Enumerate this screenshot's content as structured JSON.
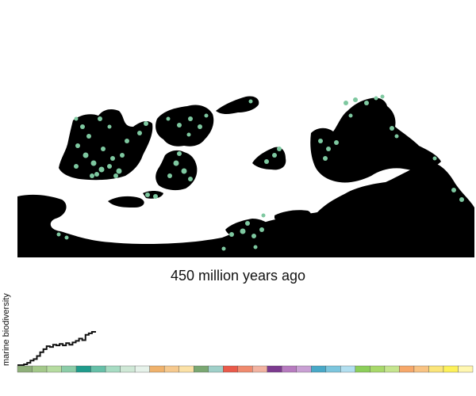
{
  "map": {
    "caption": "450 million years ago",
    "land_color": "#000000",
    "fossil_color": "#7ec8a0",
    "ocean_color": "#ffffff"
  },
  "diversity_chart": {
    "ylabel": "marine biodiversity",
    "line_color": "#111111",
    "series": [
      0,
      0,
      1,
      3,
      6,
      8,
      12,
      17,
      21,
      25,
      24,
      27,
      26,
      28,
      26,
      29,
      27,
      30,
      32,
      35,
      33,
      40,
      42,
      44,
      45
    ],
    "time_bands": [
      {
        "color": "#8fb07a"
      },
      {
        "color": "#a4c98a"
      },
      {
        "color": "#b6dca0"
      },
      {
        "color": "#8ccda8"
      },
      {
        "color": "#1f9c8c"
      },
      {
        "color": "#66c0a8"
      },
      {
        "color": "#a7dcc3"
      },
      {
        "color": "#cfe8d6"
      },
      {
        "color": "#e6f2ea"
      },
      {
        "color": "#f0b26c"
      },
      {
        "color": "#f6c98e"
      },
      {
        "color": "#fbe1a6"
      },
      {
        "color": "#7aa872"
      },
      {
        "color": "#9fd0c9"
      },
      {
        "color": "#ea5a4a"
      },
      {
        "color": "#f08a6e"
      },
      {
        "color": "#f2b3a1"
      },
      {
        "color": "#7c3a8f"
      },
      {
        "color": "#b77bc0"
      },
      {
        "color": "#c9a0d4"
      },
      {
        "color": "#48a9c8"
      },
      {
        "color": "#7cc6de"
      },
      {
        "color": "#b2dff0"
      },
      {
        "color": "#8ccf5a"
      },
      {
        "color": "#a8d96a"
      },
      {
        "color": "#c5e58e"
      },
      {
        "color": "#f7a86a"
      },
      {
        "color": "#f9c383"
      },
      {
        "color": "#fbe57a"
      },
      {
        "color": "#fdf15a"
      },
      {
        "color": "#fff7b0"
      }
    ]
  }
}
